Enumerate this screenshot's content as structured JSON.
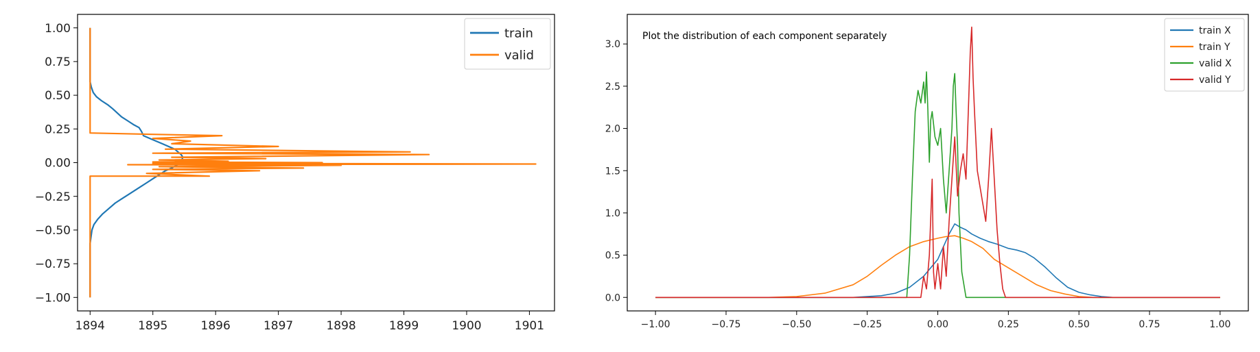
{
  "chart_data": [
    {
      "type": "line",
      "title": "",
      "xlabel": "",
      "ylabel": "",
      "xlim": [
        1893.8,
        1901.4
      ],
      "ylim": [
        -1.1,
        1.1
      ],
      "x_ticks": [
        1894,
        1895,
        1896,
        1897,
        1898,
        1899,
        1900,
        1901
      ],
      "y_ticks": [
        -1.0,
        -0.75,
        -0.5,
        -0.25,
        0.0,
        0.25,
        0.5,
        0.75,
        1.0
      ],
      "x_tick_labels": [
        "1894",
        "1895",
        "1896",
        "1897",
        "1898",
        "1899",
        "1900",
        "1901"
      ],
      "y_tick_labels": [
        "−1.00",
        "−0.75",
        "−0.50",
        "−0.25",
        "0.00",
        "0.25",
        "0.50",
        "0.75",
        "1.00"
      ],
      "grid": false,
      "legend_placement": "top-right",
      "series": [
        {
          "name": "train",
          "color": "#1f77b4",
          "points": [
            [
              1894.0,
              1.0
            ],
            [
              1894.0,
              0.6
            ],
            [
              1894.02,
              0.56
            ],
            [
              1894.05,
              0.52
            ],
            [
              1894.1,
              0.49
            ],
            [
              1894.18,
              0.46
            ],
            [
              1894.28,
              0.43
            ],
            [
              1894.36,
              0.4
            ],
            [
              1894.43,
              0.37
            ],
            [
              1894.5,
              0.34
            ],
            [
              1894.6,
              0.31
            ],
            [
              1894.7,
              0.28
            ],
            [
              1894.78,
              0.26
            ],
            [
              1894.82,
              0.23
            ],
            [
              1894.85,
              0.2
            ],
            [
              1894.95,
              0.18
            ],
            [
              1895.05,
              0.16
            ],
            [
              1895.15,
              0.14
            ],
            [
              1895.25,
              0.12
            ],
            [
              1895.35,
              0.1
            ],
            [
              1895.4,
              0.08
            ],
            [
              1895.45,
              0.06
            ],
            [
              1895.48,
              0.04
            ],
            [
              1895.46,
              0.02
            ],
            [
              1895.43,
              0.0
            ],
            [
              1895.38,
              -0.02
            ],
            [
              1895.3,
              -0.04
            ],
            [
              1895.2,
              -0.06
            ],
            [
              1895.1,
              -0.09
            ],
            [
              1895.0,
              -0.12
            ],
            [
              1894.9,
              -0.15
            ],
            [
              1894.8,
              -0.18
            ],
            [
              1894.7,
              -0.21
            ],
            [
              1894.6,
              -0.24
            ],
            [
              1894.5,
              -0.27
            ],
            [
              1894.4,
              -0.3
            ],
            [
              1894.3,
              -0.34
            ],
            [
              1894.2,
              -0.38
            ],
            [
              1894.12,
              -0.42
            ],
            [
              1894.06,
              -0.46
            ],
            [
              1894.03,
              -0.5
            ],
            [
              1894.0,
              -0.6
            ],
            [
              1894.0,
              -1.0
            ]
          ]
        },
        {
          "name": "valid",
          "color": "#ff7f0e",
          "points": [
            [
              1894.0,
              -1.0
            ],
            [
              1894.0,
              -0.1
            ],
            [
              1895.9,
              -0.1
            ],
            [
              1894.9,
              -0.08
            ],
            [
              1896.7,
              -0.06
            ],
            [
              1895.0,
              -0.05
            ],
            [
              1897.4,
              -0.04
            ],
            [
              1895.1,
              -0.03
            ],
            [
              1898.0,
              -0.02
            ],
            [
              1894.6,
              -0.015
            ],
            [
              1901.1,
              -0.01
            ],
            [
              1895.0,
              -0.005
            ],
            [
              1897.7,
              0.0
            ],
            [
              1895.0,
              0.005
            ],
            [
              1896.2,
              0.01
            ],
            [
              1895.1,
              0.02
            ],
            [
              1896.8,
              0.03
            ],
            [
              1895.3,
              0.04
            ],
            [
              1899.4,
              0.06
            ],
            [
              1895.0,
              0.07
            ],
            [
              1899.1,
              0.08
            ],
            [
              1895.2,
              0.1
            ],
            [
              1897.0,
              0.12
            ],
            [
              1895.3,
              0.14
            ],
            [
              1895.6,
              0.16
            ],
            [
              1895.0,
              0.18
            ],
            [
              1896.1,
              0.2
            ],
            [
              1895.0,
              0.21
            ],
            [
              1894.0,
              0.22
            ],
            [
              1894.0,
              1.0
            ]
          ]
        }
      ]
    },
    {
      "type": "line",
      "title": "",
      "xlabel": "",
      "ylabel": "",
      "xlim": [
        -1.1,
        1.1
      ],
      "ylim": [
        -0.16,
        3.35
      ],
      "x_ticks": [
        -1.0,
        -0.75,
        -0.5,
        -0.25,
        0.0,
        0.25,
        0.5,
        0.75,
        1.0
      ],
      "y_ticks": [
        0.0,
        0.5,
        1.0,
        1.5,
        2.0,
        2.5,
        3.0
      ],
      "x_tick_labels": [
        "−1.00",
        "−0.75",
        "−0.50",
        "−0.25",
        "0.00",
        "0.25",
        "0.50",
        "0.75",
        "1.00"
      ],
      "y_tick_labels": [
        "0.0",
        "0.5",
        "1.0",
        "1.5",
        "2.0",
        "2.5",
        "3.0"
      ],
      "grid": false,
      "legend_placement": "top-right",
      "annotation": "Plot the distribution of each component separately",
      "series": [
        {
          "name": "train X",
          "color": "#1f77b4",
          "points": [
            [
              -1.0,
              0.0
            ],
            [
              -0.3,
              0.0
            ],
            [
              -0.2,
              0.02
            ],
            [
              -0.15,
              0.05
            ],
            [
              -0.1,
              0.12
            ],
            [
              -0.05,
              0.25
            ],
            [
              0.0,
              0.45
            ],
            [
              0.02,
              0.6
            ],
            [
              0.04,
              0.75
            ],
            [
              0.06,
              0.87
            ],
            [
              0.08,
              0.83
            ],
            [
              0.1,
              0.8
            ],
            [
              0.12,
              0.75
            ],
            [
              0.15,
              0.7
            ],
            [
              0.18,
              0.66
            ],
            [
              0.21,
              0.63
            ],
            [
              0.25,
              0.58
            ],
            [
              0.28,
              0.56
            ],
            [
              0.31,
              0.53
            ],
            [
              0.34,
              0.47
            ],
            [
              0.38,
              0.36
            ],
            [
              0.42,
              0.23
            ],
            [
              0.46,
              0.12
            ],
            [
              0.5,
              0.06
            ],
            [
              0.54,
              0.03
            ],
            [
              0.58,
              0.01
            ],
            [
              0.62,
              0.0
            ],
            [
              1.0,
              0.0
            ]
          ]
        },
        {
          "name": "train Y",
          "color": "#ff7f0e",
          "points": [
            [
              -1.0,
              0.0
            ],
            [
              -0.6,
              0.0
            ],
            [
              -0.5,
              0.01
            ],
            [
              -0.4,
              0.05
            ],
            [
              -0.3,
              0.15
            ],
            [
              -0.25,
              0.25
            ],
            [
              -0.2,
              0.38
            ],
            [
              -0.15,
              0.5
            ],
            [
              -0.1,
              0.6
            ],
            [
              -0.05,
              0.66
            ],
            [
              0.0,
              0.7
            ],
            [
              0.03,
              0.72
            ],
            [
              0.06,
              0.73
            ],
            [
              0.09,
              0.7
            ],
            [
              0.12,
              0.66
            ],
            [
              0.16,
              0.58
            ],
            [
              0.2,
              0.45
            ],
            [
              0.25,
              0.35
            ],
            [
              0.3,
              0.25
            ],
            [
              0.35,
              0.15
            ],
            [
              0.4,
              0.08
            ],
            [
              0.45,
              0.04
            ],
            [
              0.5,
              0.01
            ],
            [
              0.55,
              0.0
            ],
            [
              1.0,
              0.0
            ]
          ]
        },
        {
          "name": "valid X",
          "color": "#2ca02c",
          "points": [
            [
              -1.0,
              0.0
            ],
            [
              -0.11,
              0.0
            ],
            [
              -0.1,
              0.5
            ],
            [
              -0.09,
              1.4
            ],
            [
              -0.08,
              2.2
            ],
            [
              -0.07,
              2.45
            ],
            [
              -0.06,
              2.3
            ],
            [
              -0.05,
              2.55
            ],
            [
              -0.045,
              2.3
            ],
            [
              -0.04,
              2.67
            ],
            [
              -0.035,
              2.2
            ],
            [
              -0.03,
              1.6
            ],
            [
              -0.025,
              2.1
            ],
            [
              -0.02,
              2.2
            ],
            [
              -0.01,
              1.9
            ],
            [
              0.0,
              1.8
            ],
            [
              0.01,
              2.0
            ],
            [
              0.02,
              1.4
            ],
            [
              0.03,
              1.0
            ],
            [
              0.04,
              1.5
            ],
            [
              0.05,
              2.0
            ],
            [
              0.055,
              2.5
            ],
            [
              0.06,
              2.65
            ],
            [
              0.065,
              2.2
            ],
            [
              0.07,
              1.8
            ],
            [
              0.075,
              1.0
            ],
            [
              0.085,
              0.3
            ],
            [
              0.1,
              0.0
            ],
            [
              1.0,
              0.0
            ]
          ]
        },
        {
          "name": "valid Y",
          "color": "#d62728",
          "points": [
            [
              -1.0,
              0.0
            ],
            [
              -0.06,
              0.0
            ],
            [
              -0.05,
              0.25
            ],
            [
              -0.04,
              0.1
            ],
            [
              -0.03,
              0.5
            ],
            [
              -0.02,
              1.4
            ],
            [
              -0.015,
              0.3
            ],
            [
              -0.01,
              0.1
            ],
            [
              0.0,
              0.4
            ],
            [
              0.01,
              0.1
            ],
            [
              0.02,
              0.6
            ],
            [
              0.03,
              0.25
            ],
            [
              0.04,
              0.9
            ],
            [
              0.05,
              1.4
            ],
            [
              0.06,
              1.9
            ],
            [
              0.07,
              1.2
            ],
            [
              0.08,
              1.5
            ],
            [
              0.09,
              1.7
            ],
            [
              0.1,
              1.4
            ],
            [
              0.11,
              2.4
            ],
            [
              0.115,
              2.9
            ],
            [
              0.12,
              3.2
            ],
            [
              0.125,
              2.6
            ],
            [
              0.13,
              2.2
            ],
            [
              0.14,
              1.5
            ],
            [
              0.15,
              1.3
            ],
            [
              0.16,
              1.1
            ],
            [
              0.17,
              0.9
            ],
            [
              0.18,
              1.4
            ],
            [
              0.19,
              2.0
            ],
            [
              0.2,
              1.4
            ],
            [
              0.21,
              0.8
            ],
            [
              0.22,
              0.4
            ],
            [
              0.23,
              0.1
            ],
            [
              0.24,
              0.0
            ],
            [
              1.0,
              0.0
            ]
          ]
        }
      ]
    }
  ]
}
